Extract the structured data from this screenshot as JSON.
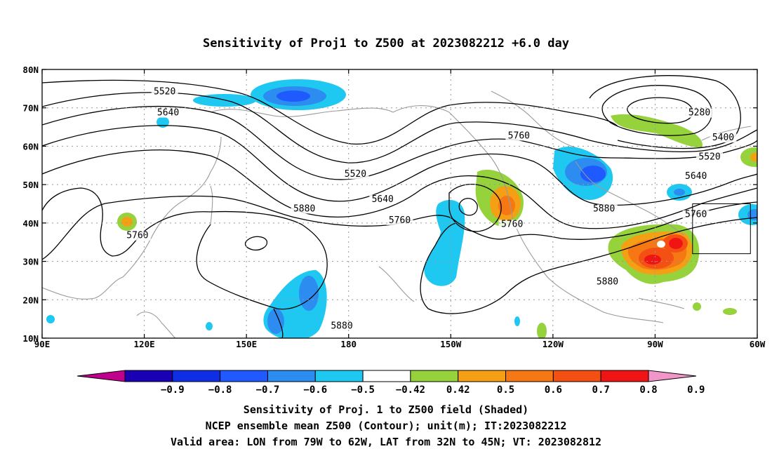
{
  "title": "Sensitivity of Proj1 to Z500 at 2023082212 +6.0 day",
  "map": {
    "lon_range": [
      90,
      300
    ],
    "lat_range": [
      10,
      80
    ],
    "lon_ticks": [
      {
        "lon": 90,
        "label": "90E"
      },
      {
        "lon": 120,
        "label": "120E"
      },
      {
        "lon": 150,
        "label": "150E"
      },
      {
        "lon": 180,
        "label": "180"
      },
      {
        "lon": 210,
        "label": "150W"
      },
      {
        "lon": 240,
        "label": "120W"
      },
      {
        "lon": 270,
        "label": "90W"
      },
      {
        "lon": 300,
        "label": "60W"
      }
    ],
    "lat_ticks": [
      {
        "lat": 10,
        "label": "10N"
      },
      {
        "lat": 20,
        "label": "20N"
      },
      {
        "lat": 30,
        "label": "30N"
      },
      {
        "lat": 40,
        "label": "40N"
      },
      {
        "lat": 50,
        "label": "50N"
      },
      {
        "lat": 60,
        "label": "60N"
      },
      {
        "lat": 70,
        "label": "70N"
      },
      {
        "lat": 80,
        "label": "80N"
      }
    ],
    "grid": "dotted",
    "valid_box": {
      "lon": [
        281,
        298
      ],
      "lat": [
        32,
        45
      ]
    },
    "contour_labels": [
      {
        "text": "5520",
        "lon": 126,
        "lat": 73.5
      },
      {
        "text": "5640",
        "lon": 127,
        "lat": 68
      },
      {
        "text": "5520",
        "lon": 182,
        "lat": 52
      },
      {
        "text": "5640",
        "lon": 190,
        "lat": 45.5
      },
      {
        "text": "5760",
        "lon": 195,
        "lat": 40
      },
      {
        "text": "5880",
        "lon": 167,
        "lat": 43
      },
      {
        "text": "5760",
        "lon": 118,
        "lat": 36
      },
      {
        "text": "5880",
        "lon": 178,
        "lat": 12.5
      },
      {
        "text": "5760",
        "lon": 230,
        "lat": 62
      },
      {
        "text": "5880",
        "lon": 255,
        "lat": 43
      },
      {
        "text": "5760",
        "lon": 228,
        "lat": 39
      },
      {
        "text": "5880",
        "lon": 256,
        "lat": 24
      },
      {
        "text": "5280",
        "lon": 283,
        "lat": 68
      },
      {
        "text": "5400",
        "lon": 290,
        "lat": 61.5
      },
      {
        "text": "5520",
        "lon": 286,
        "lat": 56.5
      },
      {
        "text": "5640",
        "lon": 282,
        "lat": 51.5
      },
      {
        "text": "5760",
        "lon": 282,
        "lat": 41.5
      }
    ]
  },
  "colorbar": {
    "colors": [
      "#c0008c",
      "#1a00b4",
      "#0f2fe6",
      "#1e5aff",
      "#2d8cf0",
      "#1ec8f0",
      "#ffffff",
      "#96d23c",
      "#f5a014",
      "#f57814",
      "#f55014",
      "#f01414",
      "#f096c8"
    ],
    "labels": [
      "-0.9",
      "-0.8",
      "-0.7",
      "-0.6",
      "-0.5",
      "-0.42",
      "0.42",
      "0.5",
      "0.6",
      "0.7",
      "0.8",
      "0.9"
    ]
  },
  "captions": [
    "Sensitivity of Proj. 1 to Z500 field (Shaded)",
    "NCEP ensemble mean Z500 (Contour); unit(m); IT:2023082212",
    "Valid area: LON from 79W to 62W, LAT from 32N to 45N; VT: 2023082812"
  ]
}
